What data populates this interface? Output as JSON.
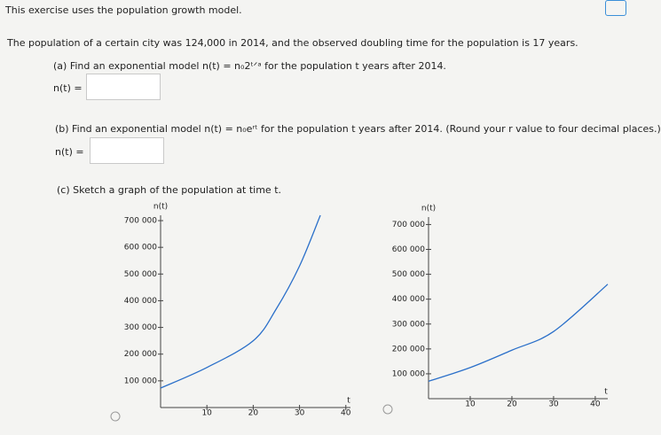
{
  "intro": "This exercise uses the population growth model.",
  "problem": "The population of a certain city was 124,000 in 2014, and the observed doubling time for the population is 17 years.",
  "part_a": {
    "prompt": "(a) Find an exponential model n(t) = n₀2ᵗᐟᵃ for the population t years after 2014.",
    "answer_label": "n(t) ="
  },
  "part_b": {
    "prompt": "(b) Find an exponential model n(t) = n₀eʳᵗ for the population t years after 2014. (Round your r value to four decimal places.)",
    "answer_label": "n(t) ="
  },
  "part_c": {
    "prompt": "(c) Sketch a graph of the population at time t.",
    "graphs": [
      {
        "y_label": "n(t)",
        "x_label": "t",
        "xlim": [
          0,
          41
        ],
        "ylim": [
          0,
          720000
        ],
        "xticks": [
          10,
          20,
          30,
          40
        ],
        "yticks": [
          {
            "value": 100000,
            "label": "100 000"
          },
          {
            "value": 200000,
            "label": "200 000"
          },
          {
            "value": 300000,
            "label": "300 000"
          },
          {
            "value": 400000,
            "label": "400 000"
          },
          {
            "value": 500000,
            "label": "500 000"
          },
          {
            "value": 600000,
            "label": "600 000"
          },
          {
            "value": 700000,
            "label": "700 000"
          }
        ],
        "x": [
          0,
          10,
          20,
          25,
          30,
          34.5
        ],
        "values": [
          73000,
          150000,
          250000,
          370000,
          530000,
          720000
        ]
      },
      {
        "y_label": "n(t)",
        "x_label": "t",
        "xlim": [
          0,
          43
        ],
        "ylim": [
          0,
          730000
        ],
        "xticks": [
          10,
          20,
          30,
          40
        ],
        "yticks": [
          {
            "value": 100000,
            "label": "100 000"
          },
          {
            "value": 200000,
            "label": "200 000"
          },
          {
            "value": 300000,
            "label": "300 000"
          },
          {
            "value": 400000,
            "label": "400 000"
          },
          {
            "value": 500000,
            "label": "500 000"
          },
          {
            "value": 600000,
            "label": "600 000"
          },
          {
            "value": 700000,
            "label": "700 000"
          }
        ],
        "x": [
          0,
          10,
          20,
          30,
          43
        ],
        "values": [
          70000,
          125000,
          195000,
          270000,
          460000
        ]
      }
    ]
  }
}
